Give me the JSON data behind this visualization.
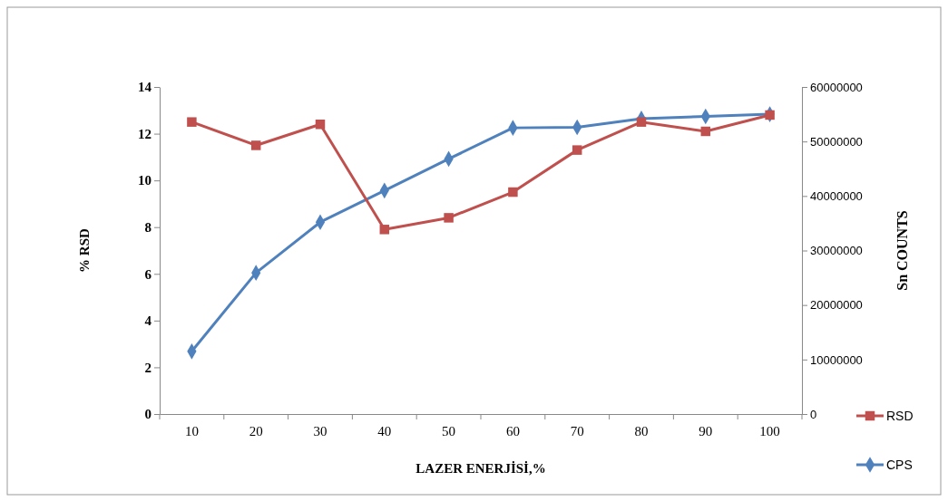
{
  "chart_data": {
    "type": "line",
    "xlabel": "LAZER ENERJİSİ,%",
    "ylabel": "% RSD",
    "y2label": "Sn COUNTS",
    "categories": [
      "10",
      "20",
      "30",
      "40",
      "50",
      "60",
      "70",
      "80",
      "90",
      "100"
    ],
    "series": [
      {
        "name": "RSD",
        "color": "#c0504d",
        "marker": "square",
        "values": [
          12.5,
          11.5,
          12.4,
          7.9,
          8.4,
          9.5,
          11.3,
          12.5,
          12.1,
          12.8
        ]
      },
      {
        "name": "CPS",
        "color": "#4f81bd",
        "marker": "diamond",
        "axis": "y2",
        "values": [
          11500000,
          25900000,
          35200000,
          41000000,
          46800000,
          52500000,
          52600000,
          54200000,
          54600000,
          55000000
        ]
      }
    ],
    "ylim": [
      0,
      14
    ],
    "yticks": [
      0,
      2,
      4,
      6,
      8,
      10,
      12,
      14
    ],
    "y2lim": [
      0,
      60000000
    ],
    "y2ticks": [
      0,
      10000000,
      20000000,
      30000000,
      40000000,
      50000000,
      60000000
    ],
    "legend": "bottom right",
    "grid": false,
    "line_style": "solid"
  }
}
